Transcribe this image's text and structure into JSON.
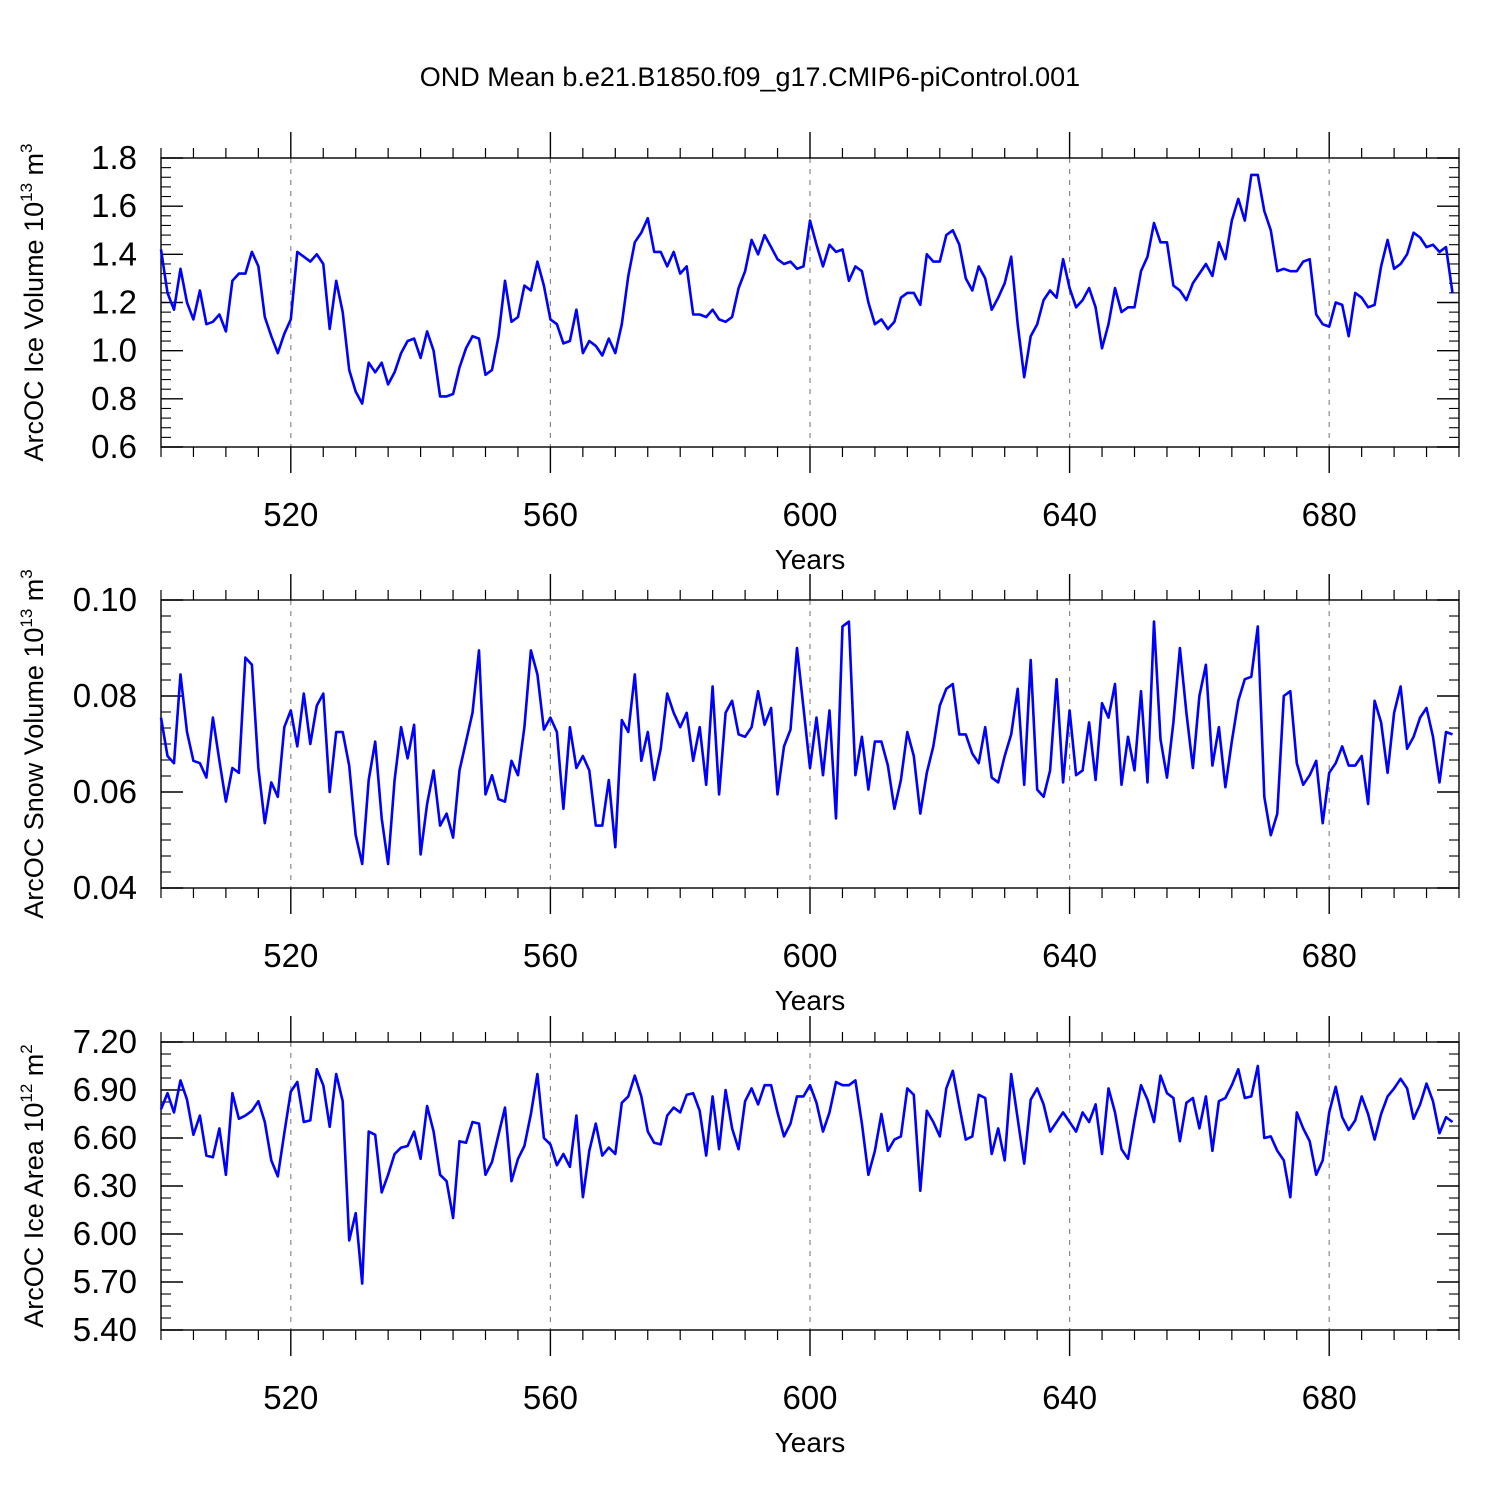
{
  "figure": {
    "title": "OND Mean b.e21.B1850.f09_g17.CMIP6-piControl.001"
  },
  "colors": {
    "series": "#0000ff",
    "axis": "#000000",
    "grid": "#888888"
  },
  "chart_data": [
    {
      "type": "line",
      "title": "",
      "xlabel": "Years",
      "ylabel": "ArcOC Ice Volume 10",
      "ylabel_exp": "13",
      "ylabel_unit": "m",
      "ylabel_unit_exp": "3",
      "xlim": [
        500,
        700
      ],
      "ylim": [
        0.6,
        1.8
      ],
      "xticks": [
        520,
        560,
        600,
        640,
        680
      ],
      "xtick_labels": [
        "520",
        "560",
        "600",
        "640",
        "680"
      ],
      "yticks": [
        0.6,
        0.8,
        1.0,
        1.2,
        1.4,
        1.6,
        1.8
      ],
      "ytick_labels": [
        "0.6",
        "0.8",
        "1.0",
        "1.2",
        "1.4",
        "1.6",
        "1.8"
      ],
      "grid": "vertical dashed at major x ticks",
      "x_start": 500,
      "values": [
        1.42,
        1.24,
        1.17,
        1.34,
        1.2,
        1.13,
        1.25,
        1.11,
        1.12,
        1.15,
        1.08,
        1.29,
        1.32,
        1.32,
        1.41,
        1.35,
        1.14,
        1.06,
        0.99,
        1.07,
        1.13,
        1.41,
        1.39,
        1.37,
        1.4,
        1.36,
        1.09,
        1.29,
        1.16,
        0.92,
        0.83,
        0.78,
        0.95,
        0.91,
        0.95,
        0.86,
        0.91,
        0.99,
        1.04,
        1.05,
        0.97,
        1.08,
        1.0,
        0.81,
        0.81,
        0.82,
        0.93,
        1.01,
        1.06,
        1.05,
        0.9,
        0.92,
        1.06,
        1.29,
        1.12,
        1.14,
        1.27,
        1.25,
        1.37,
        1.27,
        1.13,
        1.11,
        1.03,
        1.04,
        1.17,
        0.99,
        1.04,
        1.02,
        0.98,
        1.05,
        0.99,
        1.11,
        1.31,
        1.45,
        1.49,
        1.55,
        1.41,
        1.41,
        1.35,
        1.41,
        1.32,
        1.35,
        1.15,
        1.15,
        1.14,
        1.17,
        1.13,
        1.12,
        1.14,
        1.26,
        1.33,
        1.46,
        1.4,
        1.48,
        1.43,
        1.38,
        1.36,
        1.37,
        1.34,
        1.35,
        1.54,
        1.44,
        1.35,
        1.44,
        1.41,
        1.42,
        1.29,
        1.35,
        1.33,
        1.2,
        1.11,
        1.13,
        1.09,
        1.12,
        1.22,
        1.24,
        1.24,
        1.19,
        1.4,
        1.37,
        1.37,
        1.48,
        1.5,
        1.44,
        1.3,
        1.25,
        1.35,
        1.3,
        1.17,
        1.22,
        1.28,
        1.39,
        1.11,
        0.89,
        1.06,
        1.11,
        1.21,
        1.25,
        1.22,
        1.38,
        1.26,
        1.18,
        1.21,
        1.26,
        1.18,
        1.01,
        1.11,
        1.26,
        1.16,
        1.18,
        1.18,
        1.33,
        1.39,
        1.53,
        1.45,
        1.45,
        1.27,
        1.25,
        1.21,
        1.28,
        1.32,
        1.36,
        1.31,
        1.45,
        1.38,
        1.54,
        1.63,
        1.54,
        1.73,
        1.73,
        1.58,
        1.5,
        1.33,
        1.34,
        1.33,
        1.33,
        1.37,
        1.38,
        1.15,
        1.11,
        1.1,
        1.2,
        1.19,
        1.06,
        1.24,
        1.22,
        1.18,
        1.19,
        1.35,
        1.46,
        1.34,
        1.36,
        1.4,
        1.49,
        1.47,
        1.43,
        1.44,
        1.41,
        1.43,
        1.24
      ]
    },
    {
      "type": "line",
      "title": "",
      "xlabel": "Years",
      "ylabel": "ArcOC Snow Volume 10",
      "ylabel_exp": "13",
      "ylabel_unit": "m",
      "ylabel_unit_exp": "3",
      "xlim": [
        500,
        700
      ],
      "ylim": [
        0.04,
        0.1
      ],
      "xticks": [
        520,
        560,
        600,
        640,
        680
      ],
      "xtick_labels": [
        "520",
        "560",
        "600",
        "640",
        "680"
      ],
      "yticks": [
        0.04,
        0.06,
        0.08,
        0.1
      ],
      "ytick_labels": [
        "0.04",
        "0.06",
        "0.08",
        "0.10"
      ],
      "grid": "vertical dashed at major x ticks",
      "x_start": 500,
      "values": [
        0.0755,
        0.0675,
        0.066,
        0.0845,
        0.0725,
        0.0665,
        0.066,
        0.063,
        0.0755,
        0.0665,
        0.058,
        0.065,
        0.064,
        0.088,
        0.0865,
        0.065,
        0.0535,
        0.062,
        0.059,
        0.0735,
        0.077,
        0.0695,
        0.0805,
        0.07,
        0.078,
        0.0805,
        0.06,
        0.0725,
        0.0725,
        0.0655,
        0.051,
        0.045,
        0.0625,
        0.0705,
        0.0545,
        0.045,
        0.0625,
        0.0735,
        0.067,
        0.074,
        0.047,
        0.0575,
        0.0645,
        0.053,
        0.0555,
        0.0505,
        0.0645,
        0.0705,
        0.0765,
        0.0895,
        0.0595,
        0.0635,
        0.0585,
        0.058,
        0.0665,
        0.0635,
        0.0735,
        0.0895,
        0.0845,
        0.073,
        0.0755,
        0.0725,
        0.0565,
        0.0735,
        0.065,
        0.0675,
        0.0645,
        0.053,
        0.053,
        0.0625,
        0.0485,
        0.075,
        0.0725,
        0.0845,
        0.0665,
        0.0725,
        0.0625,
        0.069,
        0.0805,
        0.0765,
        0.0735,
        0.0765,
        0.0665,
        0.0735,
        0.0615,
        0.082,
        0.0595,
        0.0765,
        0.079,
        0.072,
        0.0715,
        0.0735,
        0.081,
        0.074,
        0.0775,
        0.0595,
        0.0695,
        0.073,
        0.09,
        0.0775,
        0.065,
        0.0755,
        0.0635,
        0.077,
        0.0545,
        0.0945,
        0.0955,
        0.0635,
        0.0715,
        0.0605,
        0.0705,
        0.0705,
        0.0655,
        0.0565,
        0.0625,
        0.0725,
        0.0675,
        0.0555,
        0.064,
        0.0695,
        0.078,
        0.0815,
        0.0825,
        0.072,
        0.072,
        0.068,
        0.066,
        0.0735,
        0.063,
        0.062,
        0.0675,
        0.072,
        0.0815,
        0.0615,
        0.0875,
        0.0605,
        0.059,
        0.0645,
        0.0835,
        0.062,
        0.077,
        0.0635,
        0.0645,
        0.0745,
        0.0625,
        0.0785,
        0.0755,
        0.0825,
        0.0615,
        0.0715,
        0.0645,
        0.081,
        0.062,
        0.0955,
        0.071,
        0.063,
        0.0745,
        0.09,
        0.0765,
        0.065,
        0.08,
        0.0865,
        0.0655,
        0.0735,
        0.061,
        0.0705,
        0.079,
        0.0835,
        0.084,
        0.0945,
        0.059,
        0.051,
        0.0555,
        0.08,
        0.081,
        0.066,
        0.0615,
        0.0635,
        0.0665,
        0.0535,
        0.064,
        0.066,
        0.0695,
        0.0655,
        0.0655,
        0.0675,
        0.0575,
        0.079,
        0.0745,
        0.064,
        0.0765,
        0.082,
        0.069,
        0.0715,
        0.0755,
        0.0775,
        0.0715,
        0.062,
        0.0725,
        0.072
      ]
    },
    {
      "type": "line",
      "title": "",
      "xlabel": "Years",
      "ylabel": "ArcOC Ice Area 10",
      "ylabel_exp": "12",
      "ylabel_unit": "m",
      "ylabel_unit_exp": "2",
      "xlim": [
        500,
        700
      ],
      "ylim": [
        5.4,
        7.2
      ],
      "xticks": [
        520,
        560,
        600,
        640,
        680
      ],
      "xtick_labels": [
        "520",
        "560",
        "600",
        "640",
        "680"
      ],
      "yticks": [
        5.4,
        5.7,
        6.0,
        6.3,
        6.6,
        6.9,
        7.2
      ],
      "ytick_labels": [
        "5.40",
        "5.70",
        "6.00",
        "6.30",
        "6.60",
        "6.90",
        "7.20"
      ],
      "grid": "vertical dashed at major x ticks",
      "x_start": 500,
      "values": [
        6.78,
        6.88,
        6.76,
        6.96,
        6.84,
        6.62,
        6.74,
        6.49,
        6.48,
        6.66,
        6.37,
        6.88,
        6.72,
        6.74,
        6.77,
        6.83,
        6.7,
        6.46,
        6.36,
        6.63,
        6.89,
        6.95,
        6.7,
        6.71,
        7.03,
        6.93,
        6.67,
        7.0,
        6.83,
        5.96,
        6.13,
        5.69,
        6.64,
        6.62,
        6.26,
        6.37,
        6.5,
        6.54,
        6.55,
        6.64,
        6.47,
        6.8,
        6.64,
        6.37,
        6.33,
        6.1,
        6.58,
        6.57,
        6.7,
        6.69,
        6.37,
        6.45,
        6.62,
        6.79,
        6.33,
        6.47,
        6.55,
        6.75,
        7.0,
        6.6,
        6.56,
        6.43,
        6.5,
        6.42,
        6.74,
        6.23,
        6.52,
        6.69,
        6.49,
        6.54,
        6.5,
        6.82,
        6.86,
        6.99,
        6.86,
        6.64,
        6.57,
        6.56,
        6.74,
        6.79,
        6.76,
        6.87,
        6.88,
        6.77,
        6.49,
        6.86,
        6.53,
        6.9,
        6.66,
        6.53,
        6.83,
        6.91,
        6.81,
        6.93,
        6.93,
        6.76,
        6.61,
        6.69,
        6.86,
        6.86,
        6.93,
        6.82,
        6.64,
        6.76,
        6.95,
        6.93,
        6.93,
        6.96,
        6.69,
        6.37,
        6.52,
        6.75,
        6.52,
        6.59,
        6.61,
        6.91,
        6.87,
        6.27,
        6.77,
        6.7,
        6.61,
        6.91,
        7.02,
        6.8,
        6.59,
        6.61,
        6.87,
        6.85,
        6.5,
        6.66,
        6.46,
        7.0,
        6.72,
        6.44,
        6.84,
        6.91,
        6.81,
        6.64,
        6.7,
        6.76,
        6.7,
        6.64,
        6.76,
        6.7,
        6.81,
        6.5,
        6.91,
        6.76,
        6.53,
        6.47,
        6.71,
        6.93,
        6.84,
        6.7,
        6.99,
        6.88,
        6.85,
        6.58,
        6.82,
        6.85,
        6.66,
        6.86,
        6.52,
        6.83,
        6.85,
        6.93,
        7.03,
        6.85,
        6.86,
        7.05,
        6.6,
        6.61,
        6.52,
        6.46,
        6.23,
        6.76,
        6.66,
        6.58,
        6.37,
        6.46,
        6.76,
        6.92,
        6.73,
        6.65,
        6.71,
        6.86,
        6.75,
        6.59,
        6.75,
        6.86,
        6.91,
        6.97,
        6.91,
        6.72,
        6.81,
        6.94,
        6.83,
        6.63,
        6.73,
        6.7
      ]
    }
  ]
}
